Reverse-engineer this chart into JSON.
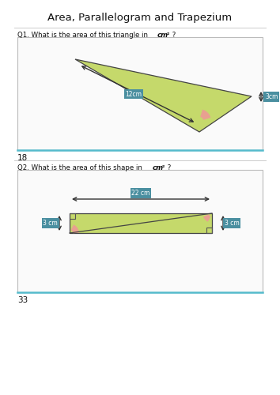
{
  "title": "Area, Parallelogram and Trapezium",
  "title_fontsize": 9.5,
  "bg_color": "#ffffff",
  "box_border_color": "#bbbbbb",
  "box_bottom_color": "#55bbcc",
  "q1_label": "Q1. What is the area of this triangle in ",
  "q1_cm2": "cm²",
  "q1_suffix": " ?",
  "q1_answer": "18",
  "q2_label": "Q2. What is the area of this shape in ",
  "q2_cm2": "cm²",
  "q2_suffix": " ?",
  "q2_answer": "33",
  "triangle_fill": "#c5d96b",
  "triangle_stroke": "#444444",
  "angle_fill": "#e8a090",
  "dim_box_color": "#4a8fa0",
  "dim_text_color": "#ffffff",
  "dim1_label": "12cm",
  "dim2_label": "3cm",
  "dim3_label": "22 cm",
  "dim4_label": "3 cm",
  "dim5_label": "3 cm"
}
